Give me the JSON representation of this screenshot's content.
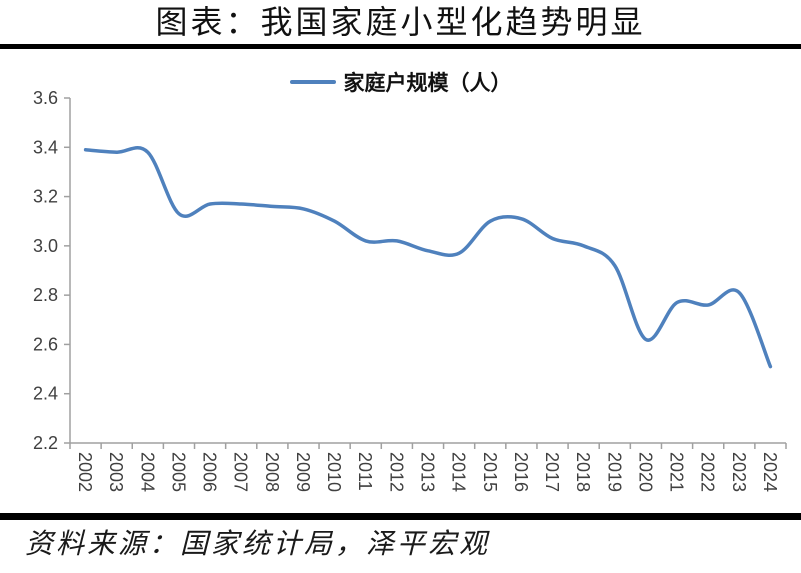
{
  "title": "图表：我国家庭小型化趋势明显",
  "source": "资料来源：国家统计局，泽平宏观",
  "legend": {
    "label": "家庭户规模（人）"
  },
  "colors": {
    "line": "#4F81BD",
    "axis": "#A0A0A0",
    "axis_text": "#404040",
    "rule": "#000000"
  },
  "chart_data": {
    "type": "line",
    "title": "家庭户规模（人）",
    "categories": [
      "2002",
      "2003",
      "2004",
      "2005",
      "2006",
      "2007",
      "2008",
      "2009",
      "2010",
      "2011",
      "2012",
      "2013",
      "2014",
      "2015",
      "2016",
      "2017",
      "2018",
      "2019",
      "2020",
      "2021",
      "2022",
      "2023",
      "2024"
    ],
    "values": [
      3.39,
      3.38,
      3.38,
      3.13,
      3.17,
      3.17,
      3.16,
      3.15,
      3.1,
      3.02,
      3.02,
      2.98,
      2.97,
      3.1,
      3.11,
      3.03,
      3.0,
      2.92,
      2.62,
      2.77,
      2.76,
      2.81,
      2.51
    ],
    "xlabel": "",
    "ylabel": "",
    "ylim": [
      2.2,
      3.6
    ],
    "ytick_step": 0.2,
    "grid": false,
    "smooth": true,
    "legend_position": "top"
  }
}
